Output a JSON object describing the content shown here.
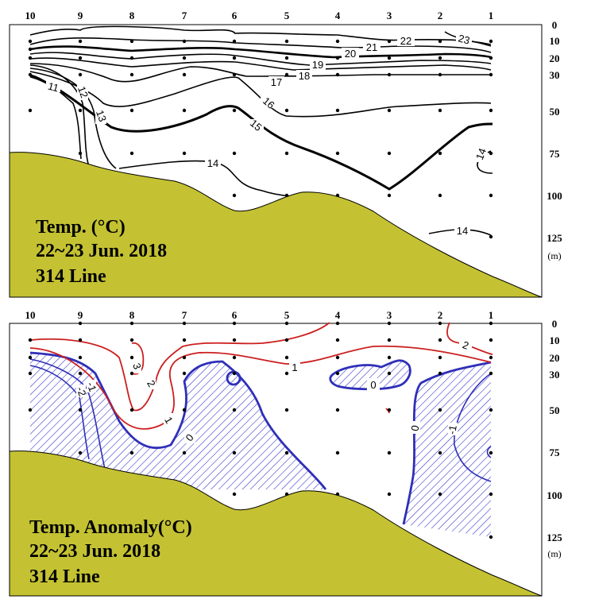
{
  "chart_data": [
    {
      "type": "contour",
      "title_lines": [
        "Temp. (°C)",
        "22~23 Jun. 2018",
        "314 Line"
      ],
      "stations": [
        "10",
        "9",
        "8",
        "7",
        "6",
        "5",
        "4",
        "3",
        "2",
        "1"
      ],
      "depth_ticks": [
        "0",
        "10",
        "20",
        "30",
        "50",
        "75",
        "100",
        "125"
      ],
      "depth_unit": "(m)",
      "contour_labels": [
        "23",
        "22",
        "21",
        "20",
        "19",
        "18",
        "17",
        "16",
        "15",
        "14",
        "14",
        "14",
        "13",
        "12",
        "11"
      ],
      "colors": {
        "line": "#000000",
        "bottom": "#c4c232"
      }
    },
    {
      "type": "contour",
      "title_lines": [
        "Temp. Anomaly(°C)",
        "22~23 Jun. 2018",
        "314 Line"
      ],
      "stations": [
        "10",
        "9",
        "8",
        "7",
        "6",
        "5",
        "4",
        "3",
        "2",
        "1"
      ],
      "depth_ticks": [
        "0",
        "10",
        "20",
        "30",
        "50",
        "75",
        "100",
        "125"
      ],
      "depth_unit": "(m)",
      "contour_labels": [
        "3",
        "2",
        "1",
        "1",
        "2",
        "0",
        "0",
        "0",
        "-1",
        "-2",
        "-1"
      ],
      "colors": {
        "positive": "#cc1f1f",
        "negative": "#2f2fb8",
        "hatch": "#3a3ad0",
        "bottom": "#c4c232"
      }
    }
  ]
}
